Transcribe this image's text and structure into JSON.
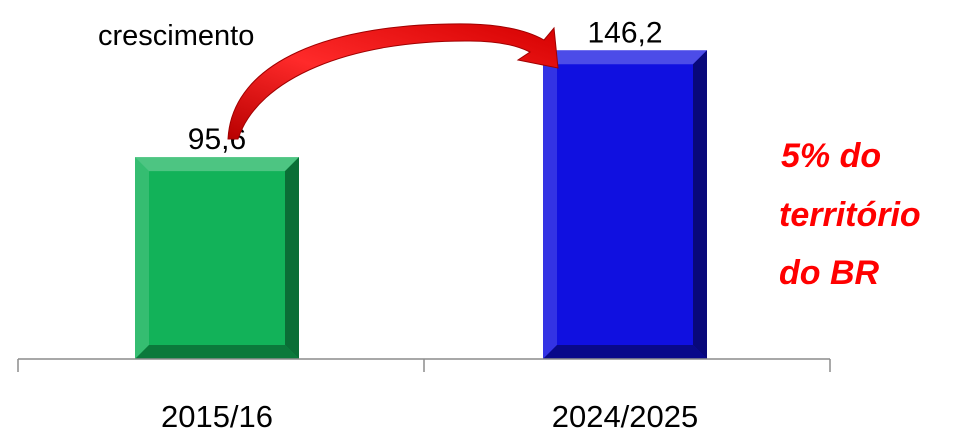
{
  "chart_data": {
    "type": "bar",
    "categories": [
      "2015/16",
      "2024/2025"
    ],
    "values": [
      95.6,
      146.2
    ],
    "data_labels": [
      "95,6",
      "146,2"
    ],
    "bar_colors": [
      "#12b259",
      "#1010e0"
    ],
    "bar_shade_colors": [
      "#0a6e36",
      "#08087a"
    ],
    "ylim": [
      0,
      170
    ],
    "grid": false,
    "legend": "none",
    "title": "",
    "xlabel": "",
    "ylabel": ""
  },
  "annotations": {
    "arrow_label": "crescimento",
    "arrow_color": "#e81414",
    "side_note_lines": [
      "5% do",
      "território",
      "do BR"
    ],
    "side_note_color": "#ff0000"
  }
}
